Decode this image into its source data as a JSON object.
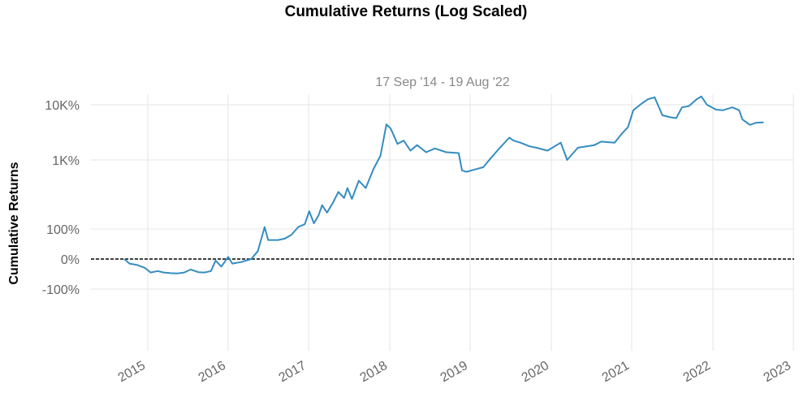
{
  "chart_data": {
    "type": "line",
    "title": "Cumulative Returns (Log Scaled)",
    "subtitle": "17 Sep '14 - 19 Aug '22",
    "xlabel": "",
    "ylabel": "Cumulative Returns",
    "y_scale": "log (growth of 1 + return)",
    "y_ticks": [
      {
        "label": "-100%",
        "value": -100
      },
      {
        "label": "0%",
        "value": 0
      },
      {
        "label": "100%",
        "value": 100
      },
      {
        "label": "1K%",
        "value": 1000
      },
      {
        "label": "10K%",
        "value": 10000
      }
    ],
    "x_ticks": [
      "2015",
      "2016",
      "2017",
      "2018",
      "2019",
      "2020",
      "2021",
      "2022",
      "2023"
    ],
    "baseline": {
      "value": 0,
      "style": "dashed",
      "color": "#000000"
    },
    "grid": true,
    "legend": "none",
    "series": [
      {
        "color": "#348dc1",
        "points": [
          [
            "2014-09-17",
            0
          ],
          [
            "2014-10-10",
            -15
          ],
          [
            "2014-11-15",
            -20
          ],
          [
            "2014-12-20",
            -30
          ],
          [
            "2015-01-14",
            -45
          ],
          [
            "2015-02-15",
            -40
          ],
          [
            "2015-03-15",
            -45
          ],
          [
            "2015-04-15",
            -47
          ],
          [
            "2015-05-15",
            -48
          ],
          [
            "2015-06-15",
            -45
          ],
          [
            "2015-07-15",
            -35
          ],
          [
            "2015-08-20",
            -44
          ],
          [
            "2015-09-15",
            -45
          ],
          [
            "2015-10-15",
            -40
          ],
          [
            "2015-11-05",
            -5
          ],
          [
            "2015-12-01",
            -25
          ],
          [
            "2016-01-01",
            5
          ],
          [
            "2016-01-20",
            -15
          ],
          [
            "2016-03-01",
            -10
          ],
          [
            "2016-04-15",
            0
          ],
          [
            "2016-05-15",
            20
          ],
          [
            "2016-06-15",
            110
          ],
          [
            "2016-07-01",
            55
          ],
          [
            "2016-08-15",
            55
          ],
          [
            "2016-09-15",
            60
          ],
          [
            "2016-10-15",
            75
          ],
          [
            "2016-11-15",
            110
          ],
          [
            "2016-12-15",
            125
          ],
          [
            "2017-01-04",
            210
          ],
          [
            "2017-01-25",
            130
          ],
          [
            "2017-02-15",
            180
          ],
          [
            "2017-03-03",
            260
          ],
          [
            "2017-03-25",
            200
          ],
          [
            "2017-04-20",
            280
          ],
          [
            "2017-05-15",
            400
          ],
          [
            "2017-06-10",
            330
          ],
          [
            "2017-06-25",
            450
          ],
          [
            "2017-07-15",
            320
          ],
          [
            "2017-08-15",
            560
          ],
          [
            "2017-09-15",
            450
          ],
          [
            "2017-10-20",
            780
          ],
          [
            "2017-11-20",
            1200
          ],
          [
            "2017-12-17",
            4500
          ],
          [
            "2018-01-05",
            3800
          ],
          [
            "2018-02-05",
            2000
          ],
          [
            "2018-03-05",
            2300
          ],
          [
            "2018-04-05",
            1500
          ],
          [
            "2018-05-05",
            1900
          ],
          [
            "2018-06-15",
            1400
          ],
          [
            "2018-07-25",
            1650
          ],
          [
            "2018-09-15",
            1400
          ],
          [
            "2018-11-10",
            1350
          ],
          [
            "2018-11-25",
            750
          ],
          [
            "2018-12-15",
            720
          ],
          [
            "2019-01-15",
            760
          ],
          [
            "2019-03-01",
            820
          ],
          [
            "2019-04-05",
            1100
          ],
          [
            "2019-05-15",
            1700
          ],
          [
            "2019-06-26",
            2600
          ],
          [
            "2019-07-15",
            2300
          ],
          [
            "2019-08-15",
            2100
          ],
          [
            "2019-09-25",
            1800
          ],
          [
            "2019-10-25",
            1700
          ],
          [
            "2019-12-15",
            1500
          ],
          [
            "2020-02-13",
            2100
          ],
          [
            "2020-03-13",
            1000
          ],
          [
            "2020-05-01",
            1700
          ],
          [
            "2020-07-15",
            1900
          ],
          [
            "2020-08-15",
            2200
          ],
          [
            "2020-10-15",
            2100
          ],
          [
            "2020-11-15",
            3000
          ],
          [
            "2020-12-15",
            4000
          ],
          [
            "2021-01-08",
            8000
          ],
          [
            "2021-02-15",
            10500
          ],
          [
            "2021-03-15",
            12500
          ],
          [
            "2021-04-14",
            13500
          ],
          [
            "2021-05-19",
            6500
          ],
          [
            "2021-06-25",
            6000
          ],
          [
            "2021-07-20",
            5800
          ],
          [
            "2021-08-15",
            9000
          ],
          [
            "2021-09-15",
            9500
          ],
          [
            "2021-10-20",
            12500
          ],
          [
            "2021-11-10",
            14000
          ],
          [
            "2021-12-05",
            10000
          ],
          [
            "2022-01-15",
            8200
          ],
          [
            "2022-02-15",
            8000
          ],
          [
            "2022-03-30",
            9000
          ],
          [
            "2022-04-30",
            8000
          ],
          [
            "2022-05-15",
            5500
          ],
          [
            "2022-06-18",
            4400
          ],
          [
            "2022-07-15",
            4800
          ],
          [
            "2022-08-19",
            4900
          ]
        ]
      }
    ]
  }
}
